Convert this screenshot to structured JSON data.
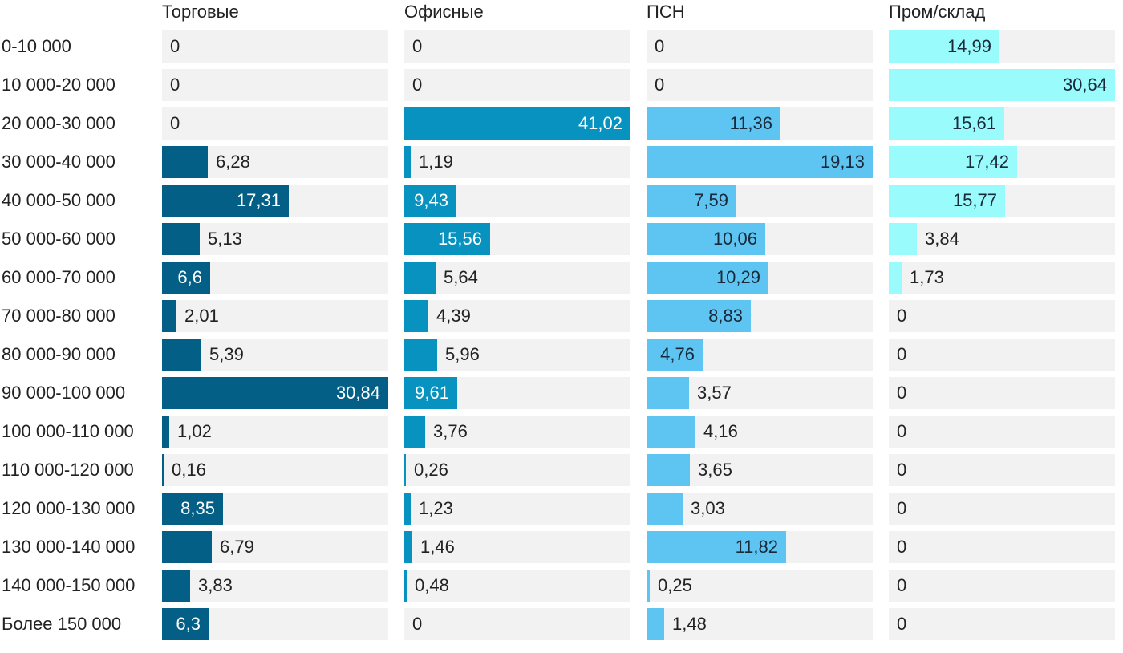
{
  "chart_data": {
    "type": "bar",
    "orientation": "horizontal",
    "layout": "small-multiples",
    "categories": [
      "0-10 000",
      "10 000-20 000",
      "20 000-30 000",
      "30 000-40 000",
      "40 000-50 000",
      "50 000-60 000",
      "60 000-70 000",
      "70 000-80 000",
      "80 000-90 000",
      "90 000-100 000",
      "100 000-110 000",
      "110 000-120 000",
      "120 000-130 000",
      "130 000-140 000",
      "140 000-150 000",
      "Более 150 000"
    ],
    "series": [
      {
        "name": "Торговые",
        "color": "#035f85",
        "max": 30.84,
        "values": [
          0,
          0,
          0,
          6.28,
          17.31,
          5.13,
          6.6,
          2.01,
          5.39,
          30.84,
          1.02,
          0.16,
          8.35,
          6.79,
          3.83,
          6.3
        ],
        "labels": [
          "0",
          "0",
          "0",
          "6,28",
          "17,31",
          "5,13",
          "6,6",
          "2,01",
          "5,39",
          "30,84",
          "1,02",
          "0,16",
          "8,35",
          "6,79",
          "3,83",
          "6,3"
        ]
      },
      {
        "name": "Офисные",
        "color": "#0792bf",
        "max": 41.02,
        "values": [
          0,
          0,
          41.02,
          1.19,
          9.43,
          15.56,
          5.64,
          4.39,
          5.96,
          9.61,
          3.76,
          0.26,
          1.23,
          1.46,
          0.48,
          0
        ],
        "labels": [
          "0",
          "0",
          "41,02",
          "1,19",
          "9,43",
          "15,56",
          "5,64",
          "4,39",
          "5,96",
          "9,61",
          "3,76",
          "0,26",
          "1,23",
          "1,46",
          "0,48",
          "0"
        ]
      },
      {
        "name": "ПСН",
        "color": "#5ec5f2",
        "max": 19.13,
        "values": [
          0,
          0,
          11.36,
          19.13,
          7.59,
          10.06,
          10.29,
          8.83,
          4.76,
          3.57,
          4.16,
          3.65,
          3.03,
          11.82,
          0.25,
          1.48
        ],
        "labels": [
          "0",
          "0",
          "11,36",
          "19,13",
          "7,59",
          "10,06",
          "10,29",
          "8,83",
          "4,76",
          "3,57",
          "4,16",
          "3,65",
          "3,03",
          "11,82",
          "0,25",
          "1,48"
        ]
      },
      {
        "name": "Пром/склад",
        "color": "#99fbfb",
        "max": 30.64,
        "values": [
          14.99,
          30.64,
          15.61,
          17.42,
          15.77,
          3.84,
          1.73,
          0,
          0,
          0,
          0,
          0,
          0,
          0,
          0,
          0
        ],
        "labels": [
          "14,99",
          "30,64",
          "15,61",
          "17,42",
          "15,77",
          "3,84",
          "1,73",
          "0",
          "0",
          "0",
          "0",
          "0",
          "0",
          "0",
          "0",
          "0"
        ]
      }
    ],
    "track_color": "#f2f2f2",
    "legend": "none",
    "grid": false
  }
}
